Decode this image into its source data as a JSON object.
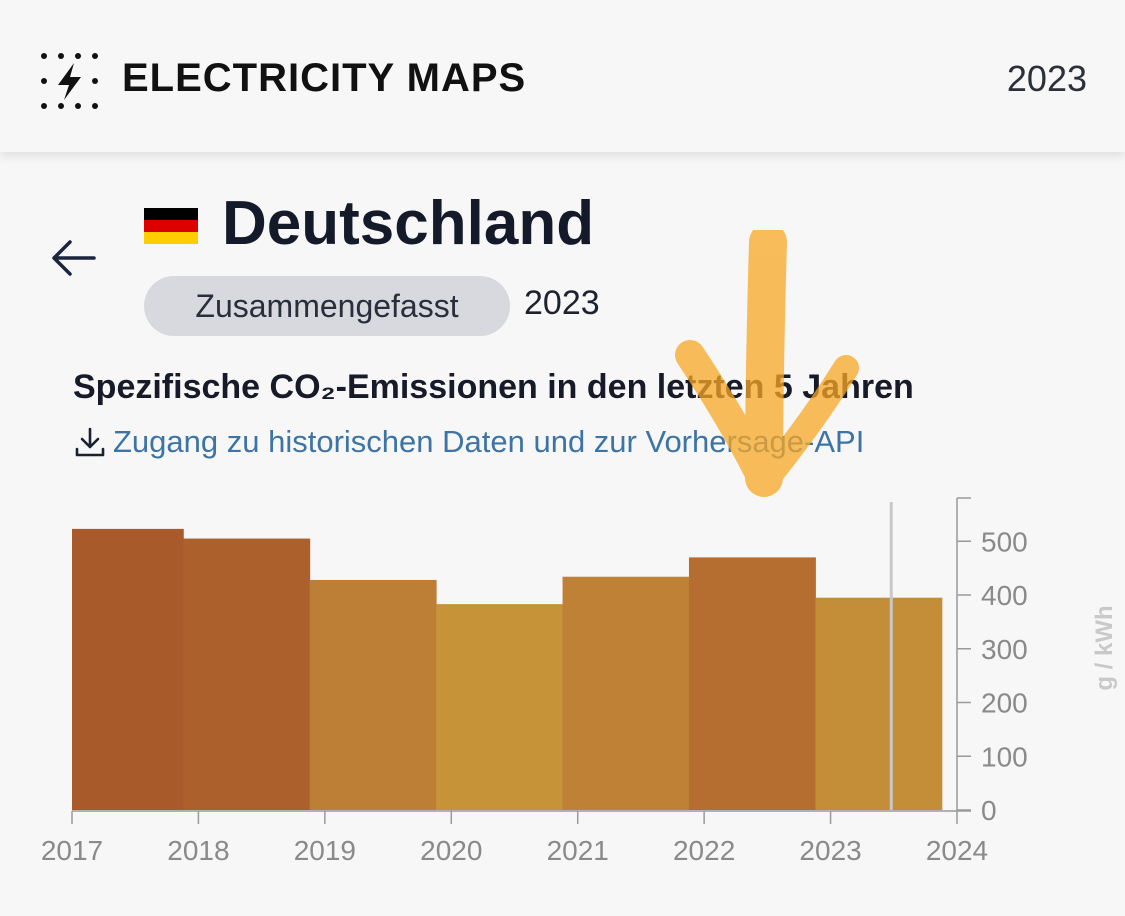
{
  "header": {
    "brand": "ELECTRICITY MAPS",
    "year": "2023",
    "icon": "lightning-logo-icon"
  },
  "zone": {
    "country": "Deutschland",
    "flag_colors": [
      "#000000",
      "#dd0000",
      "#ffce00"
    ],
    "aggregation_label": "Zusammengefasst",
    "year": "2023"
  },
  "chart_section": {
    "title": "Spezifische CO₂-Emissionen in den letzten 5 Jahren",
    "link_text": "Zugang zu historischen Daten und zur Vorhersage-API",
    "link_color": "#3d74a5"
  },
  "annotation": {
    "type": "hand-drawn arrow",
    "color": "#f9a825"
  },
  "chart_data": {
    "type": "bar",
    "x_ticks": [
      "2017",
      "2018",
      "2019",
      "2020",
      "2021",
      "2022",
      "2023",
      "2024"
    ],
    "bars": [
      {
        "start": 2017.0,
        "end": 2017.88,
        "value": 523,
        "color": "#a85a2b"
      },
      {
        "start": 2017.88,
        "end": 2018.88,
        "value": 505,
        "color": "#ac612c"
      },
      {
        "start": 2018.88,
        "end": 2019.88,
        "value": 428,
        "color": "#bd7f35"
      },
      {
        "start": 2019.88,
        "end": 2020.88,
        "value": 383,
        "color": "#c69338"
      },
      {
        "start": 2020.88,
        "end": 2021.88,
        "value": 434,
        "color": "#be8136"
      },
      {
        "start": 2021.88,
        "end": 2022.88,
        "value": 470,
        "color": "#b56e30"
      },
      {
        "start": 2022.88,
        "end": 2023.88,
        "value": 395,
        "color": "#c48d37"
      }
    ],
    "y_ticks": [
      "0",
      "100",
      "200",
      "300",
      "400",
      "500"
    ],
    "ylabel": "g / kWh",
    "ylim": [
      0,
      580
    ],
    "xlim": [
      2017,
      2024
    ],
    "cursor_x": 2023.48,
    "grid": false
  }
}
